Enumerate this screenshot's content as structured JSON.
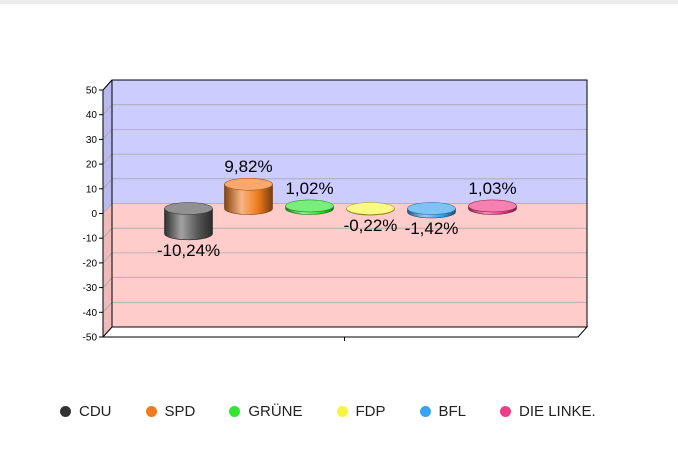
{
  "chart_data": {
    "type": "bar",
    "style": "3d-cylinder",
    "categories": [
      "CDU",
      "SPD",
      "GRÜNE",
      "FDP",
      "BFL",
      "DIE LINKE."
    ],
    "values": [
      -10.24,
      9.82,
      1.02,
      -0.22,
      -1.42,
      1.03
    ],
    "data_labels": [
      "-10,24%",
      "9,82%",
      "1,02%",
      "-0,22%",
      "-1,42%",
      "1,03%"
    ],
    "colors": [
      "#555555",
      "#f07a1e",
      "#33e533",
      "#f5f542",
      "#3aa2f0",
      "#ee3d84"
    ],
    "ylim": [
      -50,
      50
    ],
    "yticks": [
      50,
      40,
      30,
      20,
      10,
      0,
      -10,
      -20,
      -30,
      -40,
      -50
    ],
    "ytick_labels": [
      "50",
      "40",
      "30",
      "20",
      "10",
      "0",
      "-10",
      "-20",
      "-30",
      "-40",
      "-50"
    ],
    "positive_background": "#ccccff",
    "negative_background": "#ffcccc",
    "grid": true,
    "legend_position": "bottom"
  }
}
